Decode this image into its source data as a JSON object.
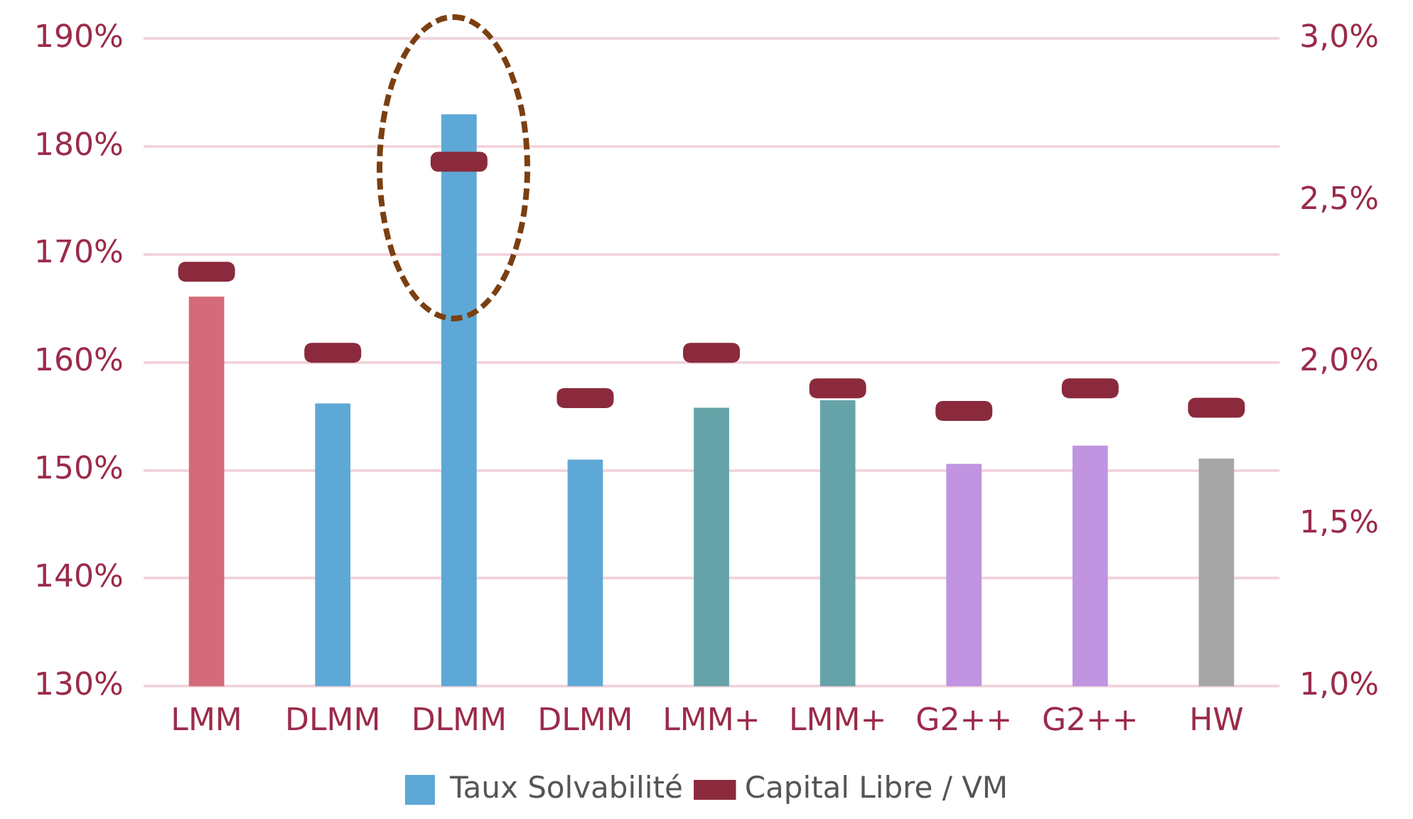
{
  "chart_data": {
    "type": "bar",
    "categories": [
      "LMM",
      "DLMM",
      "DLMM",
      "DLMM",
      "LMM+",
      "LMM+",
      "G2++",
      "G2++",
      "HW"
    ],
    "series": [
      {
        "name": "Taux Solvabilité",
        "color": "#5ea8d6",
        "colors": [
          "#d46a7a",
          "#5ea8d6",
          "#5ea8d6",
          "#5ea8d6",
          "#66a3a8",
          "#66a3a8",
          "#c094e0",
          "#c094e0",
          "#a6a6a6"
        ],
        "values": [
          166.1,
          156.2,
          183.0,
          151.0,
          155.8,
          156.5,
          150.6,
          152.3,
          151.1
        ]
      },
      {
        "name": "Capital Libre / VM",
        "type": "scatter",
        "axis": "y2",
        "color": "#8b2a3c",
        "values": [
          2.28,
          2.03,
          2.62,
          1.89,
          2.03,
          1.92,
          1.85,
          1.92,
          1.86
        ]
      }
    ],
    "ylim": [
      130,
      190
    ],
    "yticks": [
      {
        "value": 130,
        "label": "130%"
      },
      {
        "value": 140,
        "label": "140%"
      },
      {
        "value": 150,
        "label": "150%"
      },
      {
        "value": 160,
        "label": "160%"
      },
      {
        "value": 170,
        "label": "170%"
      },
      {
        "value": 180,
        "label": "180%"
      },
      {
        "value": 190,
        "label": "190%"
      }
    ],
    "y2lim": [
      1.0,
      3.0
    ],
    "y2ticks": [
      {
        "value": 1.0,
        "label": "1,0%"
      },
      {
        "value": 1.5,
        "label": "1,5%"
      },
      {
        "value": 2.0,
        "label": "2,0%"
      },
      {
        "value": 2.5,
        "label": "2,5%"
      },
      {
        "value": 3.0,
        "label": "3,0%"
      }
    ],
    "grid": "y",
    "legend": "bottom"
  }
}
